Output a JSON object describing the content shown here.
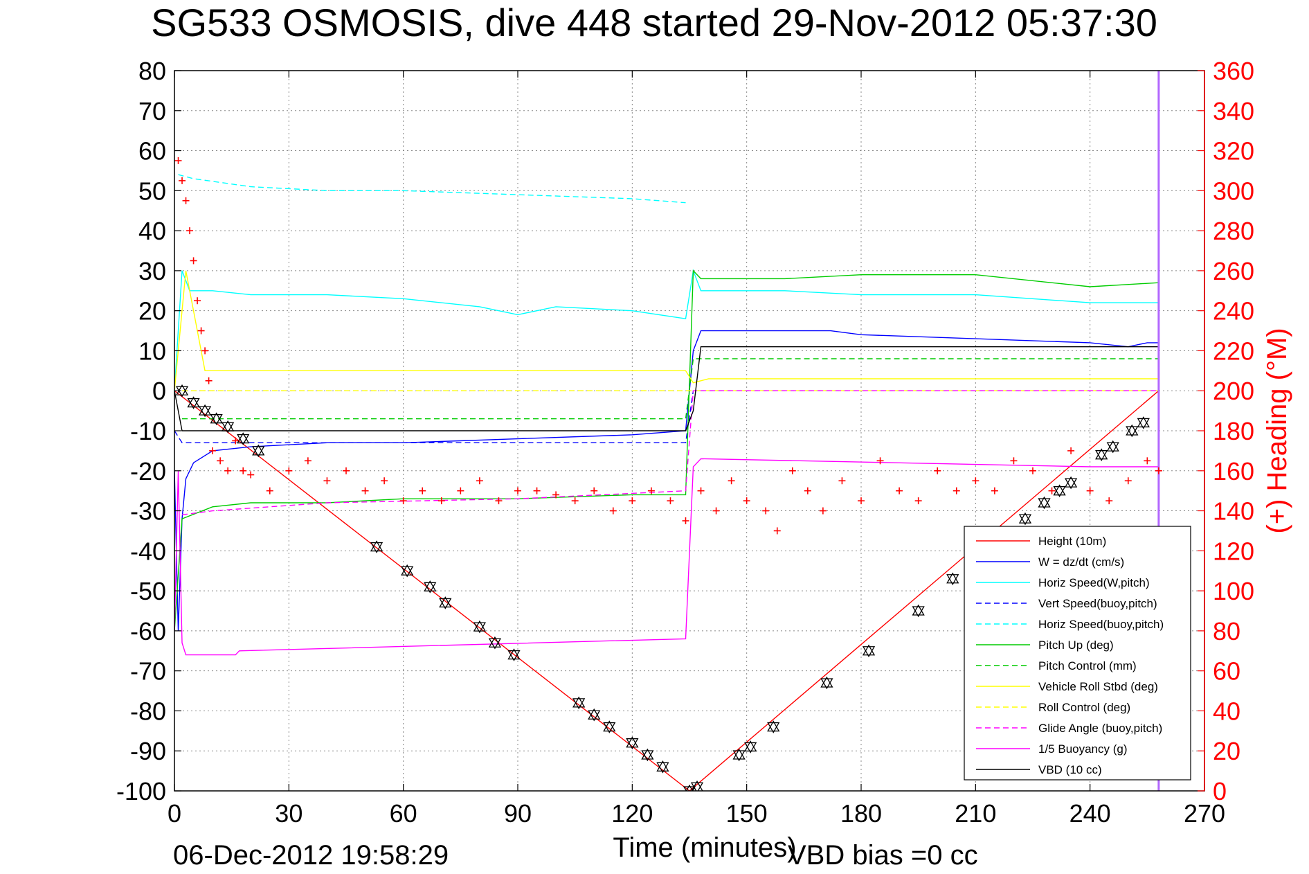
{
  "chart_data": {
    "type": "line",
    "title": "SG533 OSMOSIS, dive 448 started 29-Nov-2012 05:37:30",
    "xlabel": "Time (minutes)",
    "ylabel_right": "(+) Heading (°M)",
    "footer_left": "06-Dec-2012 19:58:29",
    "footer_right": "VBD bias =0 cc",
    "xlim": [
      0,
      270
    ],
    "ylim": [
      -100,
      80
    ],
    "ylim_right": [
      0,
      360
    ],
    "x_ticks": [
      "0",
      "30",
      "60",
      "90",
      "120",
      "150",
      "180",
      "210",
      "240",
      "270"
    ],
    "y_ticks": [
      "80",
      "70",
      "60",
      "50",
      "40",
      "30",
      "20",
      "10",
      "0",
      "-10",
      "-20",
      "-30",
      "-40",
      "-50",
      "-60",
      "-70",
      "-80",
      "-90",
      "-100"
    ],
    "y_ticks_right": [
      "360",
      "340",
      "320",
      "300",
      "280",
      "260",
      "240",
      "220",
      "200",
      "180",
      "160",
      "140",
      "120",
      "100",
      "80",
      "60",
      "40",
      "20",
      "0"
    ],
    "grid": true,
    "legend_position": "bottom-right",
    "colors": {
      "red": "#ff0000",
      "blue": "#0000ff",
      "cyan": "#00ffff",
      "green": "#00cc00",
      "yellow": "#ffff00",
      "magenta": "#ff00ff",
      "black": "#000000",
      "purple": "#b266ff"
    },
    "series": [
      {
        "name": "Height (10m)",
        "color": "#ff0000",
        "style": "solid",
        "x": [
          0,
          135,
          258
        ],
        "y": [
          0,
          -100,
          0
        ]
      },
      {
        "name": "W = dz/dt (cm/s)",
        "color": "#0000ff",
        "style": "solid",
        "x": [
          0,
          1,
          2,
          3,
          5,
          10,
          20,
          40,
          60,
          90,
          120,
          134,
          136,
          138,
          150,
          172,
          180,
          210,
          240,
          250,
          255,
          258
        ],
        "y": [
          -20,
          -60,
          -32,
          -22,
          -18,
          -15,
          -14,
          -13,
          -13,
          -12,
          -11,
          -10,
          10,
          15,
          15,
          15,
          14,
          13,
          12,
          11,
          12,
          12
        ]
      },
      {
        "name": "Horiz Speed(W,pitch)",
        "color": "#00ffff",
        "style": "solid",
        "x": [
          0,
          2,
          4,
          10,
          20,
          40,
          60,
          80,
          90,
          100,
          120,
          134,
          136,
          138,
          160,
          180,
          210,
          240,
          258
        ],
        "y": [
          0,
          30,
          25,
          25,
          24,
          24,
          23,
          21,
          19,
          21,
          20,
          18,
          30,
          25,
          25,
          24,
          24,
          22,
          22
        ]
      },
      {
        "name": "Vert Speed(buoy,pitch)",
        "color": "#0000ff",
        "style": "dashed",
        "x": [
          0,
          2,
          134,
          136,
          258
        ],
        "y": [
          -10,
          -13,
          -13,
          0,
          0
        ]
      },
      {
        "name": "Horiz Speed(buoy,pitch)",
        "color": "#00ffff",
        "style": "dashed",
        "x": [
          1,
          5,
          20,
          40,
          60,
          90,
          120,
          134
        ],
        "y": [
          54,
          53,
          51,
          50,
          50,
          49,
          48,
          47
        ]
      },
      {
        "name": "Pitch Up (deg)",
        "color": "#00cc00",
        "style": "solid",
        "x": [
          0,
          2,
          10,
          20,
          40,
          60,
          90,
          120,
          134,
          136,
          138,
          160,
          180,
          210,
          240,
          258
        ],
        "y": [
          -60,
          -32,
          -29,
          -28,
          -28,
          -27,
          -27,
          -26,
          -26,
          30,
          28,
          28,
          29,
          29,
          26,
          27
        ]
      },
      {
        "name": "Pitch Control (mm)",
        "color": "#00cc00",
        "style": "dashed",
        "x": [
          2,
          134,
          136,
          258
        ],
        "y": [
          -7,
          -7,
          8,
          8
        ]
      },
      {
        "name": "Vehicle Roll Stbd (deg)",
        "color": "#ffff00",
        "style": "solid",
        "x": [
          0,
          3,
          8,
          14,
          20,
          40,
          60,
          90,
          120,
          134,
          136,
          140,
          180,
          210,
          240,
          258
        ],
        "y": [
          0,
          30,
          5,
          5,
          5,
          5,
          5,
          5,
          5,
          5,
          2,
          3,
          3,
          3,
          3,
          3
        ]
      },
      {
        "name": "Roll Control (deg)",
        "color": "#ffff00",
        "style": "dashed",
        "x": [
          2,
          134,
          136,
          258
        ],
        "y": [
          0,
          0,
          0,
          0
        ]
      },
      {
        "name": "Glide Angle (buoy,pitch)",
        "color": "#ff00ff",
        "style": "dashed",
        "x": [
          2,
          10,
          40,
          90,
          134,
          136,
          258
        ],
        "y": [
          -31,
          -30,
          -28,
          -27,
          -25,
          0,
          0
        ]
      },
      {
        "name": "1/5 Buoyancy (g)",
        "color": "#ff00ff",
        "style": "solid",
        "x": [
          0,
          1,
          2,
          3,
          16,
          17,
          134,
          136,
          138,
          240,
          258
        ],
        "y": [
          -60,
          -20,
          -63,
          -66,
          -66,
          -65,
          -62,
          -19,
          -17,
          -19,
          -19
        ]
      },
      {
        "name": "VBD (10 cc)",
        "color": "#000000",
        "style": "solid",
        "x": [
          0,
          2,
          134,
          136,
          138,
          258
        ],
        "y": [
          0,
          -10,
          -10,
          -5,
          11,
          11
        ]
      }
    ],
    "heading_series": {
      "name": "(+) Heading",
      "color": "#ff0000",
      "marker": "+",
      "x": [
        1,
        2,
        3,
        4,
        5,
        6,
        7,
        8,
        9,
        10,
        12,
        14,
        16,
        18,
        20,
        25,
        30,
        35,
        40,
        45,
        50,
        55,
        60,
        65,
        70,
        75,
        80,
        85,
        90,
        95,
        100,
        105,
        110,
        115,
        120,
        125,
        130,
        134,
        138,
        142,
        146,
        150,
        155,
        158,
        162,
        166,
        170,
        175,
        180,
        185,
        190,
        195,
        200,
        205,
        210,
        215,
        220,
        225,
        230,
        235,
        240,
        245,
        250,
        255,
        258
      ],
      "y": [
        315,
        305,
        295,
        280,
        265,
        245,
        230,
        220,
        205,
        170,
        165,
        160,
        175,
        160,
        158,
        150,
        160,
        165,
        155,
        160,
        150,
        155,
        145,
        150,
        145,
        150,
        155,
        145,
        150,
        150,
        148,
        145,
        150,
        140,
        145,
        150,
        145,
        135,
        150,
        140,
        155,
        145,
        140,
        130,
        160,
        150,
        140,
        155,
        145,
        165,
        150,
        145,
        160,
        150,
        155,
        150,
        165,
        160,
        150,
        170,
        150,
        145,
        155,
        165,
        160
      ]
    },
    "height_markers": {
      "x": [
        2,
        5,
        8,
        11,
        14,
        18,
        22,
        53,
        61,
        67,
        71,
        80,
        84,
        89,
        106,
        110,
        114,
        120,
        124,
        128,
        135,
        137,
        148,
        151,
        157,
        171,
        182,
        195,
        204,
        218,
        223,
        228,
        232,
        235,
        243,
        246,
        251,
        254
      ],
      "y": [
        0,
        -3,
        -5,
        -7,
        -9,
        -12,
        -15,
        -39,
        -45,
        -49,
        -53,
        -59,
        -63,
        -66,
        -78,
        -81,
        -84,
        -88,
        -91,
        -94,
        -100,
        -99,
        -91,
        -89,
        -84,
        -73,
        -65,
        -55,
        -47,
        -36,
        -32,
        -28,
        -25,
        -23,
        -16,
        -14,
        -10,
        -8
      ]
    },
    "annotations": {
      "surface_time_x": 258
    }
  }
}
